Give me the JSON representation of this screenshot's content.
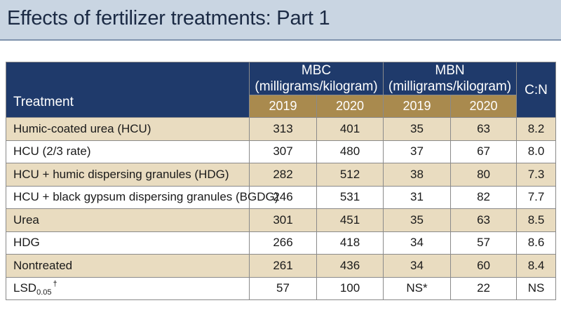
{
  "title": "Effects of fertilizer treatments: Part 1",
  "header": {
    "treatment": "Treatment",
    "mbc_line1": "MBC",
    "mbc_line2": "(milligrams/kilogram)",
    "mbn_line1": "MBN",
    "mbn_line2": "(milligrams/kilogram)",
    "cn": "C:N",
    "years": [
      "2019",
      "2020",
      "2019",
      "2020"
    ]
  },
  "rows": [
    {
      "treatment": "Humic-coated urea (HCU)",
      "mbc2019": "313",
      "mbc2020": "401",
      "mbn2019": "35",
      "mbn2020": "63",
      "cn": "8.2"
    },
    {
      "treatment": "HCU (2/3 rate)",
      "mbc2019": "307",
      "mbc2020": "480",
      "mbn2019": "37",
      "mbn2020": "67",
      "cn": "8.0"
    },
    {
      "treatment": "HCU + humic dispersing granules (HDG)",
      "mbc2019": "282",
      "mbc2020": "512",
      "mbn2019": "38",
      "mbn2020": "80",
      "cn": "7.3"
    },
    {
      "treatment": "HCU + black gypsum dispersing granules (BGDG)",
      "mbc2019": "246",
      "mbc2020": "531",
      "mbn2019": "31",
      "mbn2020": "82",
      "cn": "7.7"
    },
    {
      "treatment": "Urea",
      "mbc2019": "301",
      "mbc2020": "451",
      "mbn2019": "35",
      "mbn2020": "63",
      "cn": "8.5"
    },
    {
      "treatment": "HDG",
      "mbc2019": "266",
      "mbc2020": "418",
      "mbn2019": "34",
      "mbn2020": "57",
      "cn": "8.6"
    },
    {
      "treatment": "Nontreated",
      "mbc2019": "261",
      "mbc2020": "436",
      "mbn2019": "34",
      "mbn2020": "60",
      "cn": "8.4"
    }
  ],
  "lsd": {
    "label": "LSD",
    "subscript": "0.05",
    "superscript": "†",
    "mbc2019": "57",
    "mbc2020": "100",
    "mbn2019": "NS*",
    "mbn2020": "22",
    "cn": "NS"
  }
}
